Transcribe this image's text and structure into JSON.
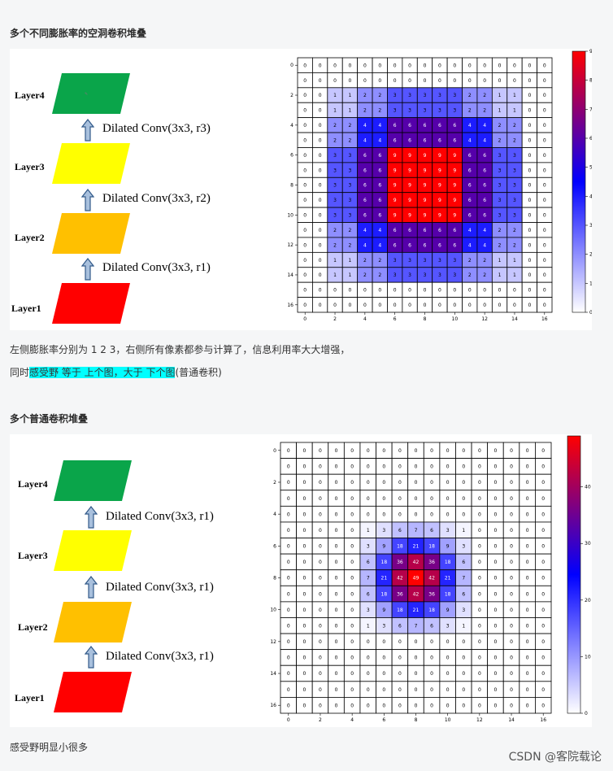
{
  "section1": {
    "heading": "多个不同膨胀率的空洞卷积堆叠",
    "layers": [
      "Layer4",
      "Layer3",
      "Layer2",
      "Layer1"
    ],
    "layer_colors": [
      "#0aa54a",
      "#ffff00",
      "#ffc000",
      "#ff0000"
    ],
    "convs": [
      "Dilated Conv(3x3, r3)",
      "Dilated Conv(3x3, r2)",
      "Dilated Conv(3x3, r1)"
    ],
    "text1": "左侧膨胀率分别为 1 2 3，右侧所有像素都参与计算了，信息利用率大大增强，",
    "text2_prefix": "同时",
    "text2_highlight": "感受野 等于 上个图，大于 下个图",
    "text2_suffix": "(普通卷积)"
  },
  "section2": {
    "heading": "多个普通卷积堆叠",
    "layers": [
      "Layer4",
      "Layer3",
      "Layer2",
      "Layer1"
    ],
    "layer_colors": [
      "#0aa54a",
      "#ffff00",
      "#ffc000",
      "#ff0000"
    ],
    "convs": [
      "Dilated Conv(3x3, r1)",
      "Dilated Conv(3x3, r1)",
      "Dilated Conv(3x3, r1)"
    ],
    "text": "感受野明显小很多"
  },
  "watermark": "CSDN @客院载论",
  "chart_data": [
    {
      "type": "heatmap",
      "colormap": "seismic-like white-blue-red",
      "grid": true,
      "x_ticks": [
        "0",
        "2",
        "4",
        "6",
        "8",
        "10",
        "12",
        "14",
        "16"
      ],
      "y_ticks": [
        "0",
        "2",
        "4",
        "6",
        "8",
        "10",
        "12",
        "14",
        "16"
      ],
      "colorbar_ticks": [
        "0",
        "1",
        "2",
        "3",
        "4",
        "5",
        "6",
        "7",
        "8",
        "9"
      ],
      "vmax": 9,
      "values": [
        [
          0,
          0,
          0,
          0,
          0,
          0,
          0,
          0,
          0,
          0,
          0,
          0,
          0,
          0,
          0,
          0,
          0
        ],
        [
          0,
          0,
          0,
          0,
          0,
          0,
          0,
          0,
          0,
          0,
          0,
          0,
          0,
          0,
          0,
          0,
          0
        ],
        [
          0,
          0,
          1,
          1,
          2,
          2,
          3,
          3,
          3,
          3,
          3,
          2,
          2,
          1,
          1,
          0,
          0
        ],
        [
          0,
          0,
          1,
          1,
          2,
          2,
          3,
          3,
          3,
          3,
          3,
          2,
          2,
          1,
          1,
          0,
          0
        ],
        [
          0,
          0,
          2,
          2,
          4,
          4,
          6,
          6,
          6,
          6,
          6,
          4,
          4,
          2,
          2,
          0,
          0
        ],
        [
          0,
          0,
          2,
          2,
          4,
          4,
          6,
          6,
          6,
          6,
          6,
          4,
          4,
          2,
          2,
          0,
          0
        ],
        [
          0,
          0,
          3,
          3,
          6,
          6,
          9,
          9,
          9,
          9,
          9,
          6,
          6,
          3,
          3,
          0,
          0
        ],
        [
          0,
          0,
          3,
          3,
          6,
          6,
          9,
          9,
          9,
          9,
          9,
          6,
          6,
          3,
          3,
          0,
          0
        ],
        [
          0,
          0,
          3,
          3,
          6,
          6,
          9,
          9,
          9,
          9,
          9,
          6,
          6,
          3,
          3,
          0,
          0
        ],
        [
          0,
          0,
          3,
          3,
          6,
          6,
          9,
          9,
          9,
          9,
          9,
          6,
          6,
          3,
          3,
          0,
          0
        ],
        [
          0,
          0,
          3,
          3,
          6,
          6,
          9,
          9,
          9,
          9,
          9,
          6,
          6,
          3,
          3,
          0,
          0
        ],
        [
          0,
          0,
          2,
          2,
          4,
          4,
          6,
          6,
          6,
          6,
          6,
          4,
          4,
          2,
          2,
          0,
          0
        ],
        [
          0,
          0,
          2,
          2,
          4,
          4,
          6,
          6,
          6,
          6,
          6,
          4,
          4,
          2,
          2,
          0,
          0
        ],
        [
          0,
          0,
          1,
          1,
          2,
          2,
          3,
          3,
          3,
          3,
          3,
          2,
          2,
          1,
          1,
          0,
          0
        ],
        [
          0,
          0,
          1,
          1,
          2,
          2,
          3,
          3,
          3,
          3,
          3,
          2,
          2,
          1,
          1,
          0,
          0
        ],
        [
          0,
          0,
          0,
          0,
          0,
          0,
          0,
          0,
          0,
          0,
          0,
          0,
          0,
          0,
          0,
          0,
          0
        ],
        [
          0,
          0,
          0,
          0,
          0,
          0,
          0,
          0,
          0,
          0,
          0,
          0,
          0,
          0,
          0,
          0,
          0
        ]
      ]
    },
    {
      "type": "heatmap",
      "colormap": "seismic-like white-blue-red",
      "grid": true,
      "x_ticks": [
        "0",
        "2",
        "4",
        "6",
        "8",
        "10",
        "12",
        "14",
        "16"
      ],
      "y_ticks": [
        "0",
        "2",
        "4",
        "6",
        "8",
        "10",
        "12",
        "14",
        "16"
      ],
      "colorbar_ticks": [
        "0",
        "10",
        "20",
        "30",
        "40"
      ],
      "vmax": 49,
      "values": [
        [
          0,
          0,
          0,
          0,
          0,
          0,
          0,
          0,
          0,
          0,
          0,
          0,
          0,
          0,
          0,
          0,
          0
        ],
        [
          0,
          0,
          0,
          0,
          0,
          0,
          0,
          0,
          0,
          0,
          0,
          0,
          0,
          0,
          0,
          0,
          0
        ],
        [
          0,
          0,
          0,
          0,
          0,
          0,
          0,
          0,
          0,
          0,
          0,
          0,
          0,
          0,
          0,
          0,
          0
        ],
        [
          0,
          0,
          0,
          0,
          0,
          0,
          0,
          0,
          0,
          0,
          0,
          0,
          0,
          0,
          0,
          0,
          0
        ],
        [
          0,
          0,
          0,
          0,
          0,
          0,
          0,
          0,
          0,
          0,
          0,
          0,
          0,
          0,
          0,
          0,
          0
        ],
        [
          0,
          0,
          0,
          0,
          0,
          1,
          3,
          6,
          7,
          6,
          3,
          1,
          0,
          0,
          0,
          0,
          0
        ],
        [
          0,
          0,
          0,
          0,
          0,
          3,
          9,
          18,
          21,
          18,
          9,
          3,
          0,
          0,
          0,
          0,
          0
        ],
        [
          0,
          0,
          0,
          0,
          0,
          6,
          18,
          36,
          42,
          36,
          18,
          6,
          0,
          0,
          0,
          0,
          0
        ],
        [
          0,
          0,
          0,
          0,
          0,
          7,
          21,
          42,
          49,
          42,
          21,
          7,
          0,
          0,
          0,
          0,
          0
        ],
        [
          0,
          0,
          0,
          0,
          0,
          6,
          18,
          36,
          42,
          36,
          18,
          6,
          0,
          0,
          0,
          0,
          0
        ],
        [
          0,
          0,
          0,
          0,
          0,
          3,
          9,
          18,
          21,
          18,
          9,
          3,
          0,
          0,
          0,
          0,
          0
        ],
        [
          0,
          0,
          0,
          0,
          0,
          1,
          3,
          6,
          7,
          6,
          3,
          1,
          0,
          0,
          0,
          0,
          0
        ],
        [
          0,
          0,
          0,
          0,
          0,
          0,
          0,
          0,
          0,
          0,
          0,
          0,
          0,
          0,
          0,
          0,
          0
        ],
        [
          0,
          0,
          0,
          0,
          0,
          0,
          0,
          0,
          0,
          0,
          0,
          0,
          0,
          0,
          0,
          0,
          0
        ],
        [
          0,
          0,
          0,
          0,
          0,
          0,
          0,
          0,
          0,
          0,
          0,
          0,
          0,
          0,
          0,
          0,
          0
        ],
        [
          0,
          0,
          0,
          0,
          0,
          0,
          0,
          0,
          0,
          0,
          0,
          0,
          0,
          0,
          0,
          0,
          0
        ],
        [
          0,
          0,
          0,
          0,
          0,
          0,
          0,
          0,
          0,
          0,
          0,
          0,
          0,
          0,
          0,
          0,
          0
        ]
      ]
    }
  ]
}
